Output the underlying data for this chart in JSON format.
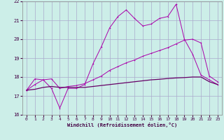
{
  "xlabel": "Windchill (Refroidissement éolien,°C)",
  "bg_color": "#cceee8",
  "grid_color": "#aaaacc",
  "line_color1": "#880088",
  "line_color2": "#aa00aa",
  "line_color3": "#660066",
  "xlim": [
    -0.5,
    23.5
  ],
  "ylim": [
    16,
    22
  ],
  "yticks": [
    16,
    17,
    18,
    19,
    20,
    21,
    22
  ],
  "xticks": [
    0,
    1,
    2,
    3,
    4,
    5,
    6,
    7,
    8,
    9,
    10,
    11,
    12,
    13,
    14,
    15,
    16,
    17,
    18,
    19,
    20,
    21,
    22,
    23
  ],
  "s1_x": [
    0,
    1,
    2,
    3,
    4,
    5,
    6,
    7,
    8,
    9,
    10,
    11,
    12,
    13,
    14,
    15,
    16,
    17,
    18,
    19,
    20,
    21,
    22,
    23
  ],
  "s1_y": [
    17.3,
    17.9,
    17.85,
    17.4,
    16.35,
    17.4,
    17.4,
    17.6,
    18.7,
    19.6,
    20.6,
    21.2,
    21.55,
    21.1,
    20.7,
    20.8,
    21.1,
    21.2,
    21.85,
    20.0,
    19.2,
    18.1,
    17.85,
    17.6
  ],
  "s2_x": [
    0,
    1,
    2,
    3,
    4,
    5,
    6,
    7,
    8,
    9,
    10,
    11,
    12,
    13,
    14,
    15,
    16,
    17,
    18,
    19,
    20,
    21,
    22,
    23
  ],
  "s2_y": [
    17.3,
    17.6,
    17.85,
    17.9,
    17.4,
    17.5,
    17.55,
    17.65,
    17.85,
    18.05,
    18.35,
    18.55,
    18.75,
    18.9,
    19.1,
    19.25,
    19.4,
    19.55,
    19.75,
    19.95,
    20.0,
    19.8,
    18.05,
    17.75
  ],
  "s3_x": [
    0,
    1,
    2,
    3,
    4,
    5,
    6,
    7,
    8,
    9,
    10,
    11,
    12,
    13,
    14,
    15,
    16,
    17,
    18,
    19,
    20,
    21,
    22,
    23
  ],
  "s3_y": [
    17.3,
    17.35,
    17.45,
    17.5,
    17.45,
    17.45,
    17.45,
    17.45,
    17.5,
    17.55,
    17.6,
    17.65,
    17.7,
    17.75,
    17.8,
    17.85,
    17.88,
    17.92,
    17.95,
    17.97,
    18.0,
    18.0,
    17.75,
    17.6
  ]
}
